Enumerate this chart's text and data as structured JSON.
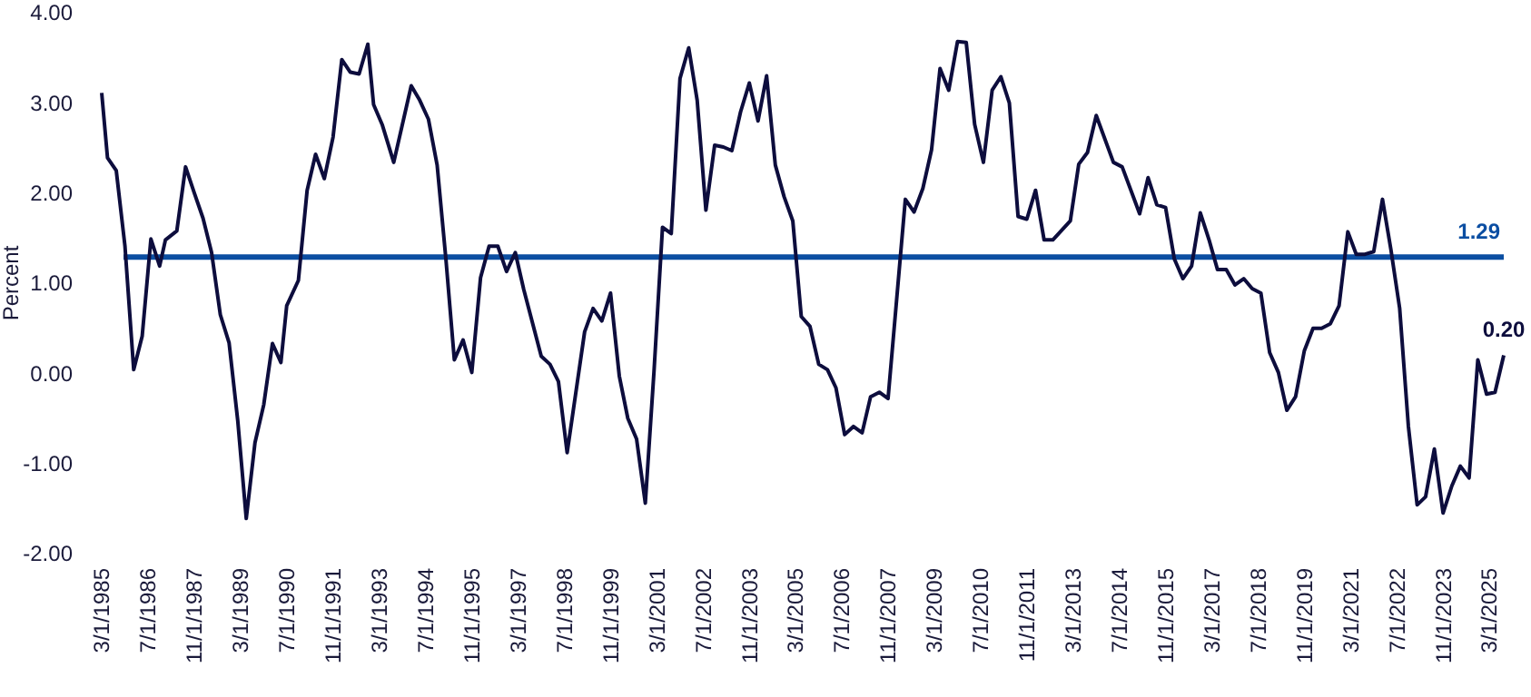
{
  "chart_data": {
    "type": "line",
    "ylabel": "Percent",
    "x": [
      "1985-03",
      "1985-05",
      "1985-08",
      "1985-11",
      "1986-02",
      "1986-05",
      "1986-08",
      "1986-11",
      "1987-01",
      "1987-05",
      "1987-08",
      "1987-11",
      "1988-02",
      "1988-05",
      "1988-08",
      "1988-11",
      "1989-02",
      "1989-05",
      "1989-08",
      "1989-11",
      "1990-02",
      "1990-05",
      "1990-07",
      "1990-11",
      "1991-02",
      "1991-05",
      "1991-08",
      "1991-11",
      "1992-02",
      "1992-05",
      "1992-08",
      "1992-11",
      "1993-01",
      "1993-04",
      "1993-08",
      "1994-02",
      "1994-05",
      "1994-08",
      "1994-11",
      "1995-02",
      "1995-05",
      "1995-08",
      "1995-11",
      "1996-02",
      "1996-05",
      "1996-08",
      "1996-11",
      "1997-02",
      "1997-05",
      "1997-11",
      "1998-02",
      "1998-05",
      "1998-08",
      "1999-02",
      "1999-05",
      "1999-08",
      "1999-11",
      "2000-02",
      "2000-05",
      "2000-08",
      "2000-11",
      "2001-02",
      "2001-05",
      "2001-08",
      "2001-11",
      "2002-02",
      "2002-05",
      "2002-08",
      "2002-11",
      "2003-02",
      "2003-05",
      "2003-08",
      "2003-11",
      "2004-02",
      "2004-05",
      "2004-08",
      "2004-11",
      "2005-02",
      "2005-05",
      "2005-08",
      "2005-11",
      "2006-02",
      "2006-05",
      "2006-08",
      "2006-11",
      "2007-02",
      "2007-05",
      "2007-08",
      "2007-11",
      "2008-05",
      "2008-08",
      "2008-11",
      "2009-02",
      "2009-05",
      "2009-08",
      "2009-11",
      "2010-02",
      "2010-05",
      "2010-08",
      "2010-11",
      "2011-02",
      "2011-05",
      "2011-08",
      "2011-11",
      "2012-02",
      "2012-05",
      "2012-08",
      "2013-02",
      "2013-05",
      "2013-08",
      "2013-11",
      "2014-05",
      "2014-08",
      "2015-02",
      "2015-05",
      "2015-08",
      "2015-11",
      "2016-02",
      "2016-05",
      "2016-08",
      "2016-11",
      "2017-02",
      "2017-05",
      "2017-08",
      "2017-11",
      "2018-02",
      "2018-05",
      "2018-08",
      "2018-11",
      "2019-02",
      "2019-05",
      "2019-08",
      "2019-11",
      "2020-02",
      "2020-05",
      "2020-08",
      "2020-11",
      "2021-02",
      "2021-05",
      "2021-08",
      "2021-11",
      "2022-02",
      "2022-05",
      "2022-08",
      "2022-11",
      "2023-02",
      "2023-05",
      "2023-08",
      "2023-11",
      "2024-02",
      "2024-05",
      "2024-08",
      "2024-11",
      "2025-02",
      "2025-05",
      "2025-08"
    ],
    "series": [
      {
        "color": "#0d0d3d",
        "values": [
          3.11,
          2.39,
          2.25,
          1.41,
          0.04,
          0.41,
          1.49,
          1.19,
          1.48,
          1.58,
          2.29,
          2.0,
          1.72,
          1.34,
          0.65,
          0.34,
          -0.53,
          -1.61,
          -0.77,
          -0.35,
          0.33,
          0.12,
          0.75,
          1.03,
          2.03,
          2.43,
          2.16,
          2.62,
          3.48,
          3.34,
          3.32,
          3.65,
          2.98,
          2.76,
          2.34,
          3.19,
          3.03,
          2.82,
          2.31,
          1.27,
          0.15,
          0.37,
          0.01,
          1.06,
          1.41,
          1.41,
          1.13,
          1.34,
          0.93,
          0.19,
          0.1,
          -0.09,
          -0.88,
          0.46,
          0.72,
          0.58,
          0.89,
          -0.03,
          -0.5,
          -0.73,
          -1.44,
          0.03,
          1.62,
          1.55,
          3.27,
          3.61,
          3.03,
          1.81,
          2.53,
          2.51,
          2.47,
          2.9,
          3.22,
          2.8,
          3.3,
          2.31,
          1.96,
          1.69,
          0.63,
          0.52,
          0.1,
          0.04,
          -0.16,
          -0.68,
          -0.59,
          -0.66,
          -0.26,
          -0.21,
          -0.28,
          1.93,
          1.79,
          2.05,
          2.48,
          3.38,
          3.14,
          3.68,
          3.67,
          2.76,
          2.34,
          3.14,
          3.29,
          3.0,
          1.74,
          1.71,
          2.03,
          1.48,
          1.48,
          1.69,
          2.32,
          2.45,
          2.86,
          2.34,
          2.29,
          1.77,
          2.17,
          1.87,
          1.84,
          1.27,
          1.05,
          1.19,
          1.78,
          1.48,
          1.15,
          1.15,
          0.98,
          1.05,
          0.94,
          0.89,
          0.23,
          0.01,
          -0.41,
          -0.26,
          0.25,
          0.5,
          0.5,
          0.55,
          0.75,
          1.57,
          1.32,
          1.32,
          1.35,
          1.93,
          1.37,
          0.72,
          -0.59,
          -1.46,
          -1.37,
          -0.84,
          -1.55,
          -1.25,
          -1.03,
          -1.16,
          0.15,
          -0.23,
          -0.21,
          0.2
        ],
        "value_labels": [
          null,
          null,
          null,
          null,
          null,
          null,
          null,
          null,
          null,
          null,
          null,
          null,
          null,
          null,
          null,
          null,
          null,
          null,
          null,
          null,
          null,
          null,
          null,
          null,
          null,
          null,
          null,
          null,
          null,
          null,
          null,
          null,
          null,
          null,
          null,
          null,
          null,
          null,
          null,
          null,
          null,
          null,
          null,
          null,
          null,
          null,
          null,
          null,
          null,
          null,
          null,
          null,
          null,
          null,
          null,
          null,
          null,
          null,
          null,
          null,
          null,
          null,
          null,
          null,
          null,
          null,
          null,
          null,
          null,
          null,
          null,
          null,
          null,
          null,
          null,
          null,
          null,
          null,
          null,
          null,
          null,
          null,
          null,
          null,
          null,
          null,
          null,
          null,
          null,
          null,
          null,
          null,
          null,
          null,
          null,
          null,
          null,
          null,
          null,
          null,
          null,
          null,
          null,
          null,
          null,
          null,
          null,
          null,
          null,
          null,
          null,
          null,
          null,
          null,
          null,
          null,
          null,
          null,
          null,
          null,
          null,
          null,
          null,
          null,
          null,
          null,
          null,
          null,
          null,
          null,
          null,
          null,
          null,
          null,
          null,
          null,
          null,
          null,
          null,
          null,
          null,
          null,
          null,
          null,
          null,
          null,
          null,
          null,
          null,
          null,
          null,
          null,
          null,
          null,
          null,
          "0.20"
        ]
      }
    ],
    "ref_lines": [
      {
        "axis": "y",
        "value": 1.29,
        "label": "1.29",
        "color": "#0b4ea2"
      }
    ],
    "xlim": [
      "1985-03",
      "2025-08"
    ],
    "xticks": [
      {
        "value": "1985-03-01",
        "label": "3/1/1985"
      },
      {
        "value": "1986-07-01",
        "label": "7/1/1986"
      },
      {
        "value": "1987-11-01",
        "label": "11/1/1987"
      },
      {
        "value": "1989-03-01",
        "label": "3/1/1989"
      },
      {
        "value": "1990-07-01",
        "label": "7/1/1990"
      },
      {
        "value": "1991-11-01",
        "label": "11/1/1991"
      },
      {
        "value": "1993-03-01",
        "label": "3/1/1993"
      },
      {
        "value": "1994-07-01",
        "label": "7/1/1994"
      },
      {
        "value": "1995-11-01",
        "label": "11/1/1995"
      },
      {
        "value": "1997-03-01",
        "label": "3/1/1997"
      },
      {
        "value": "1998-07-01",
        "label": "7/1/1998"
      },
      {
        "value": "1999-11-01",
        "label": "11/1/1999"
      },
      {
        "value": "2001-03-01",
        "label": "3/1/2001"
      },
      {
        "value": "2002-07-01",
        "label": "7/1/2002"
      },
      {
        "value": "2003-11-01",
        "label": "11/1/2003"
      },
      {
        "value": "2005-03-01",
        "label": "3/1/2005"
      },
      {
        "value": "2006-07-01",
        "label": "7/1/2006"
      },
      {
        "value": "2007-11-01",
        "label": "11/1/2007"
      },
      {
        "value": "2009-03-01",
        "label": "3/1/2009"
      },
      {
        "value": "2010-07-01",
        "label": "7/1/2010"
      },
      {
        "value": "2011-11-01",
        "label": "11/1/2011"
      },
      {
        "value": "2013-03-01",
        "label": "3/1/2013"
      },
      {
        "value": "2014-07-01",
        "label": "7/1/2014"
      },
      {
        "value": "2015-11-01",
        "label": "11/1/2015"
      },
      {
        "value": "2017-03-01",
        "label": "3/1/2017"
      },
      {
        "value": "2018-07-01",
        "label": "7/1/2018"
      },
      {
        "value": "2019-11-01",
        "label": "11/1/2019"
      },
      {
        "value": "2021-03-01",
        "label": "3/1/2021"
      },
      {
        "value": "2022-07-01",
        "label": "7/1/2022"
      },
      {
        "value": "2023-11-01",
        "label": "11/1/2023"
      },
      {
        "value": "2025-03-01",
        "label": "3/1/2025"
      }
    ],
    "ylim": [
      -2,
      4
    ],
    "yticks": [
      {
        "value": 4,
        "label": "4.00"
      },
      {
        "value": 3,
        "label": "3.00"
      },
      {
        "value": 2,
        "label": "2.00"
      },
      {
        "value": 1,
        "label": "1.00"
      },
      {
        "value": 0,
        "label": "0.00"
      },
      {
        "value": -1,
        "label": "-1.00"
      },
      {
        "value": -2,
        "label": "-2.00"
      }
    ]
  }
}
